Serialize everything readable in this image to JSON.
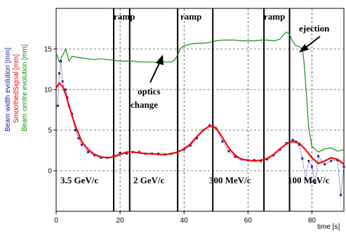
{
  "chart_data": {
    "type": "line",
    "xlabel": "time [s]",
    "y_axis_labels": [
      {
        "text": "Beam width evolution [mm]",
        "color": "#1a1aa0"
      },
      {
        "text": "SmoothedSignal [mm]",
        "color": "#ff0000"
      },
      {
        "text": "Beam centre evolution [mm]",
        "color": "#109010"
      }
    ],
    "xlim": [
      0,
      90
    ],
    "ylim": [
      -5,
      20
    ],
    "x_ticks": [
      0,
      20,
      40,
      60,
      80
    ],
    "y_ticks": [
      0,
      5,
      10,
      15
    ],
    "grid": true,
    "series": [
      {
        "role": "beam-width",
        "color": "#1a1aa0",
        "x": [
          0.5,
          1,
          1.5,
          2,
          2.5,
          3,
          3.5,
          4,
          5,
          6,
          7,
          8,
          10,
          12,
          14,
          16,
          18,
          20,
          22,
          24,
          26,
          28,
          30,
          32,
          34,
          36,
          38,
          40,
          42,
          44,
          46,
          48,
          49,
          50,
          52,
          54,
          56,
          58,
          60,
          62,
          64,
          66,
          68,
          70,
          72,
          74,
          75,
          76,
          77,
          78,
          79,
          80,
          81,
          82,
          84,
          86,
          88,
          89,
          90
        ],
        "y": [
          8,
          12,
          13.5,
          11,
          10,
          10,
          9,
          8,
          7,
          5,
          4,
          3.2,
          2.3,
          1.9,
          1.6,
          1.6,
          1.8,
          2.2,
          2.1,
          2.3,
          2.3,
          2.1,
          2.1,
          2.1,
          2.0,
          2.1,
          2.3,
          2.6,
          3.1,
          4.0,
          5.0,
          5.6,
          5.5,
          5.2,
          3.6,
          2.4,
          1.7,
          1.4,
          1.3,
          1.3,
          1.2,
          1.4,
          1.9,
          2.6,
          3.4,
          3.8,
          3.6,
          3.2,
          1.5,
          -1,
          1.2,
          0.5,
          -1.5,
          1.8,
          0.8,
          1.2,
          1.3,
          -3,
          0.5
        ]
      },
      {
        "role": "smoothed-signal",
        "color": "#ff0000",
        "x": [
          0,
          1,
          2,
          3,
          4,
          6,
          8,
          10,
          12,
          14,
          16,
          18,
          20,
          22,
          24,
          26,
          28,
          30,
          32,
          34,
          36,
          38,
          40,
          42,
          44,
          46,
          48,
          50,
          52,
          54,
          56,
          58,
          60,
          62,
          64,
          66,
          68,
          70,
          72,
          74,
          76,
          78,
          80,
          82,
          84,
          86,
          88,
          90
        ],
        "y": [
          10.2,
          10.8,
          10.4,
          9.4,
          8,
          5.5,
          3.6,
          2.6,
          2.0,
          1.7,
          1.6,
          1.7,
          2.0,
          2.3,
          2.3,
          2.2,
          2.1,
          2.1,
          2.0,
          2.0,
          2.1,
          2.3,
          2.7,
          3.3,
          4.2,
          5.0,
          5.5,
          5.3,
          4.1,
          2.8,
          1.9,
          1.4,
          1.3,
          1.2,
          1.3,
          1.5,
          2.0,
          2.7,
          3.3,
          3.6,
          3.4,
          2.6,
          1.6,
          0.9,
          1.2,
          1.6,
          1.4,
          0.8
        ]
      },
      {
        "role": "beam-centre",
        "color": "#109010",
        "x": [
          0,
          1,
          2,
          3,
          4,
          5,
          6,
          8,
          10,
          12,
          14,
          16,
          18,
          20,
          22,
          24,
          26,
          28,
          30,
          32,
          34,
          36,
          37,
          38,
          39,
          40,
          42,
          44,
          46,
          48,
          50,
          52,
          54,
          56,
          58,
          60,
          62,
          64,
          66,
          68,
          70,
          71,
          72,
          73,
          74,
          75,
          76,
          77,
          77.5,
          78,
          79,
          80,
          82,
          84,
          86,
          88,
          90
        ],
        "y": [
          14.5,
          13.4,
          14.2,
          15,
          13.5,
          14.1,
          14,
          13.9,
          13.8,
          13.7,
          13.8,
          13.7,
          13.6,
          13.5,
          13.5,
          13.5,
          13.4,
          13.4,
          13.4,
          13.3,
          13.4,
          13.4,
          13.6,
          14.3,
          15.1,
          15.4,
          15.6,
          15.7,
          15.7,
          15.8,
          16.0,
          16.1,
          16.1,
          16.1,
          16.0,
          16.0,
          16.0,
          16.1,
          16.1,
          16.0,
          16.2,
          16.7,
          17.1,
          16.8,
          15.9,
          15.4,
          15.3,
          15.0,
          13.5,
          11,
          5.2,
          3.0,
          2.3,
          2.7,
          2.8,
          2.4,
          2.6
        ]
      }
    ],
    "vertical_lines_x": [
      18,
      23,
      38,
      49,
      65,
      73
    ],
    "annotations": {
      "ramp1": "ramp",
      "ramp2": "ramp",
      "ramp3": "ramp",
      "ejection": "ejection",
      "optics_line1": "optics",
      "optics_line2": "change",
      "energy1": "3.5 GeV/c",
      "energy2": "2 GeV/c",
      "energy3": "300 MeV/c",
      "energy4": "100 MeV/c"
    }
  }
}
